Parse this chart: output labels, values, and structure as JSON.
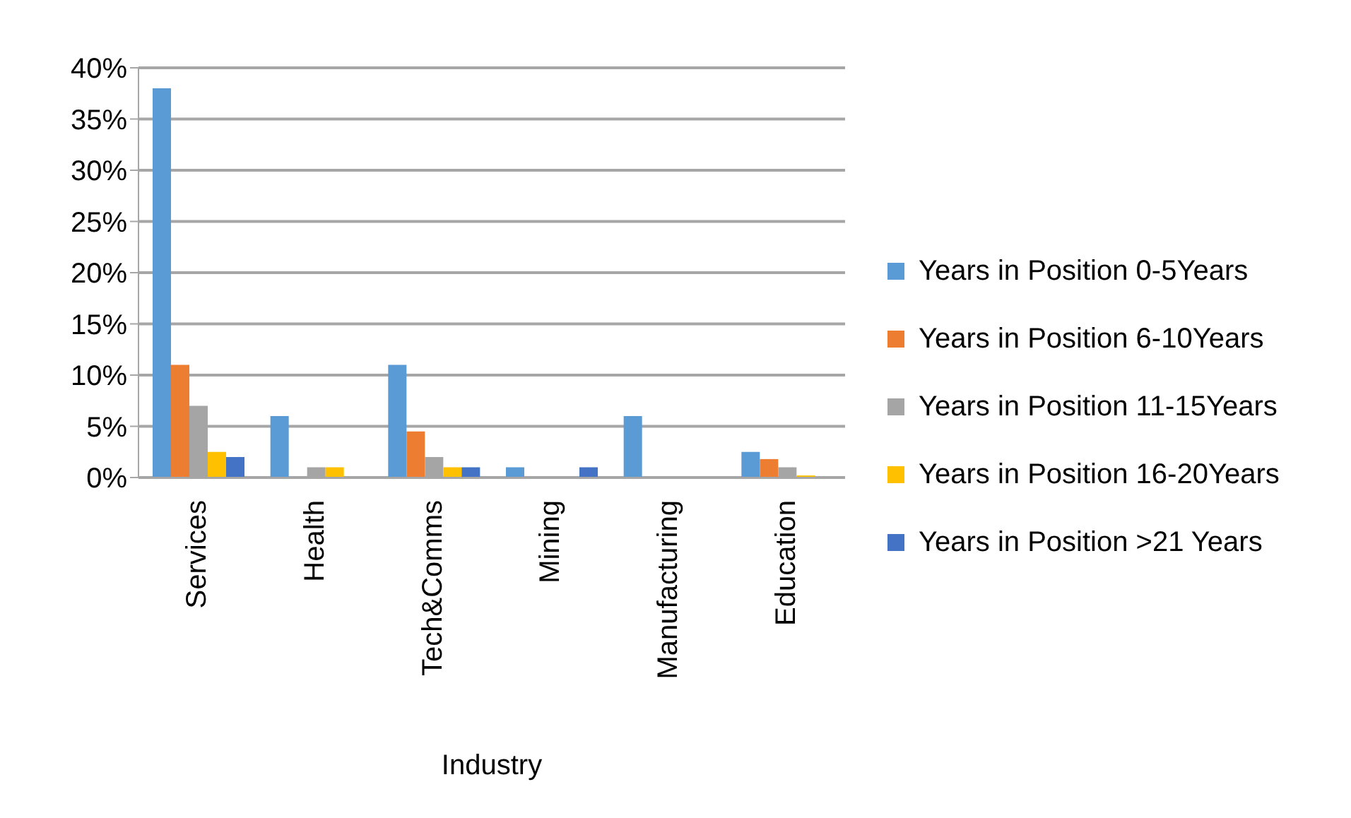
{
  "chart_data": {
    "type": "bar",
    "xlabel": "Industry",
    "categories": [
      "Services",
      "Health",
      "Tech&Comms",
      "Mining",
      "Manufacturing",
      "Education"
    ],
    "series": [
      {
        "name": "Years in Position 0-5Years",
        "color": "#5b9bd5",
        "values": [
          38,
          6,
          11,
          1,
          6,
          2.5
        ]
      },
      {
        "name": "Years in Position 6-10Years",
        "color": "#ed7d31",
        "values": [
          11,
          0,
          4.5,
          0,
          0,
          1.8
        ]
      },
      {
        "name": "Years in Position 11-15Years",
        "color": "#a5a5a5",
        "values": [
          7,
          1,
          2,
          0,
          0,
          1
        ]
      },
      {
        "name": "Years in Position 16-20Years",
        "color": "#ffc000",
        "values": [
          2.5,
          1,
          1,
          0,
          0,
          0.2
        ]
      },
      {
        "name": "Years in Position >21 Years",
        "color": "#4472c4",
        "values": [
          2,
          0,
          1,
          1,
          0,
          0
        ]
      }
    ],
    "ylim": [
      0,
      40
    ],
    "yticks": [
      {
        "value": 0,
        "label": "0%"
      },
      {
        "value": 5,
        "label": "5%"
      },
      {
        "value": 10,
        "label": "10%"
      },
      {
        "value": 15,
        "label": "15%"
      },
      {
        "value": 20,
        "label": "20%"
      },
      {
        "value": 25,
        "label": "25%"
      },
      {
        "value": 30,
        "label": "30%"
      },
      {
        "value": 35,
        "label": "35%"
      },
      {
        "value": 40,
        "label": "40%"
      }
    ],
    "grid": "y",
    "legend": "right"
  }
}
